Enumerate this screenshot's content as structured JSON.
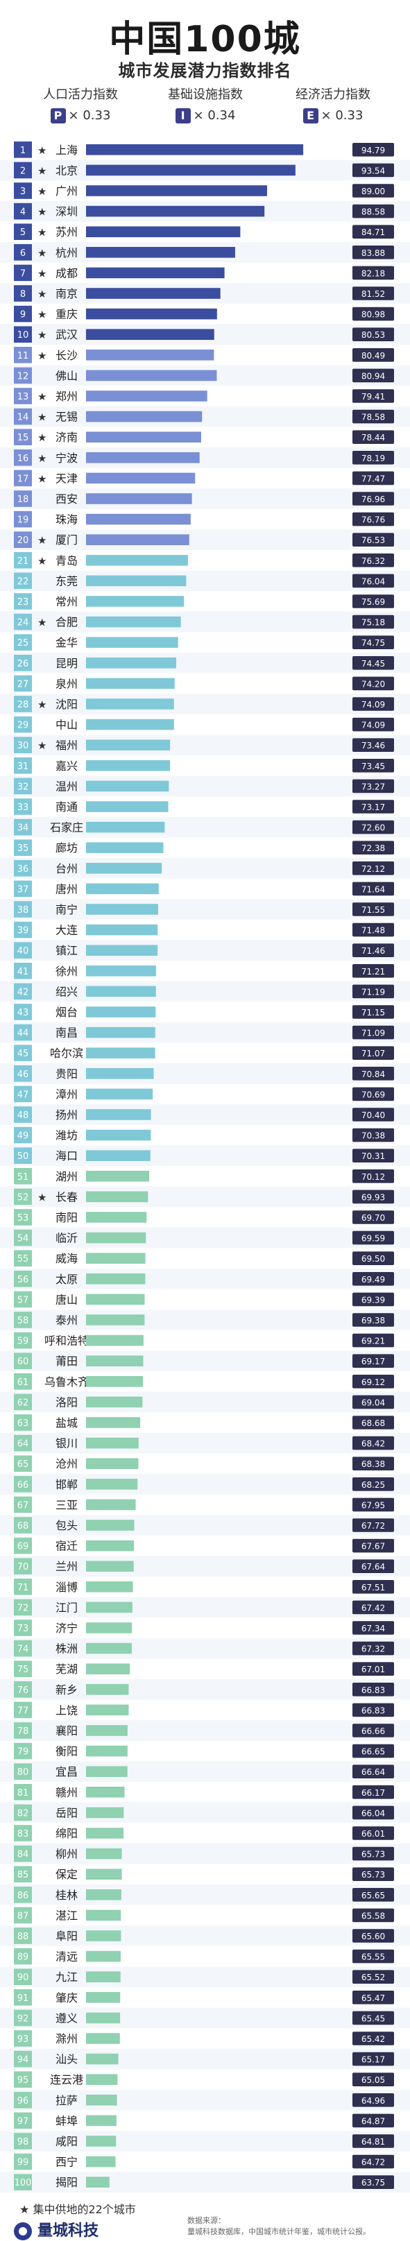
{
  "header": {
    "title": "中国100城",
    "subtitle": "城市发展潜力指数排名",
    "factors": [
      {
        "label": "人口活力指数",
        "letter": "P",
        "weight": "× 0.33"
      },
      {
        "label": "基础设施指数",
        "letter": "I",
        "weight": "× 0.34"
      },
      {
        "label": "经济活力指数",
        "letter": "E",
        "weight": "× 0.33"
      }
    ]
  },
  "colors": {
    "rank_dark": "#3b4d9e",
    "rank_mid": "#7a8fd4",
    "rank_light": "#7fc8d8",
    "rank_green": "#8fd1b0",
    "bar_dark": "#3b4d9e",
    "bar_mid": "#7a8fd4",
    "bar_light": "#7fc8d8",
    "bar_green": "#8fd1b0",
    "value_box": "#2f2f4f"
  },
  "chart_data": {
    "type": "bar",
    "orientation": "horizontal",
    "xlim": [
      60,
      96
    ],
    "categories": [
      "上海",
      "北京",
      "广州",
      "深圳",
      "苏州",
      "杭州",
      "成都",
      "南京",
      "重庆",
      "武汉",
      "长沙",
      "佛山",
      "郑州",
      "无锡",
      "济南",
      "宁波",
      "天津",
      "西安",
      "珠海",
      "厦门",
      "青岛",
      "东莞",
      "常州",
      "合肥",
      "金华",
      "昆明",
      "泉州",
      "沈阳",
      "中山",
      "福州",
      "嘉兴",
      "温州",
      "南通",
      "石家庄",
      "廊坊",
      "台州",
      "唐州",
      "南宁",
      "大连",
      "镇江",
      "徐州",
      "绍兴",
      "烟台",
      "南昌",
      "哈尔滨",
      "贵阳",
      "漳州",
      "扬州",
      "潍坊",
      "海口",
      "湖州",
      "长春",
      "南阳",
      "临沂",
      "威海",
      "太原",
      "唐山",
      "泰州",
      "呼和浩特",
      "莆田",
      "乌鲁木齐",
      "洛阳",
      "盐城",
      "银川",
      "沧州",
      "邯郸",
      "三亚",
      "包头",
      "宿迁",
      "兰州",
      "淄博",
      "江门",
      "济宁",
      "株洲",
      "芜湖",
      "新乡",
      "上饶",
      "襄阳",
      "衡阳",
      "宜昌",
      "赣州",
      "岳阳",
      "绵阳",
      "柳州",
      "保定",
      "桂林",
      "湛江",
      "阜阳",
      "清远",
      "九江",
      "肇庆",
      "遵义",
      "滁州",
      "汕头",
      "连云港",
      "拉萨",
      "蚌埠",
      "咸阳",
      "西宁",
      "揭阳"
    ],
    "values": [
      94.79,
      93.54,
      89.0,
      88.58,
      84.71,
      83.88,
      82.18,
      81.52,
      80.98,
      80.53,
      80.49,
      80.94,
      79.41,
      78.58,
      78.44,
      78.19,
      77.47,
      76.96,
      76.76,
      76.53,
      76.32,
      76.04,
      75.69,
      75.18,
      74.75,
      74.45,
      74.2,
      74.09,
      74.09,
      73.46,
      73.45,
      73.27,
      73.17,
      72.6,
      72.38,
      72.12,
      71.64,
      71.55,
      71.48,
      71.46,
      71.21,
      71.19,
      71.15,
      71.09,
      71.07,
      70.84,
      70.69,
      70.4,
      70.38,
      70.31,
      70.12,
      69.93,
      69.7,
      69.59,
      69.5,
      69.49,
      69.39,
      69.38,
      69.21,
      69.17,
      69.12,
      69.04,
      68.68,
      68.42,
      68.38,
      68.25,
      67.95,
      67.72,
      67.67,
      67.64,
      67.51,
      67.42,
      67.34,
      67.32,
      67.01,
      66.83,
      66.83,
      66.66,
      66.65,
      66.64,
      66.17,
      66.04,
      66.01,
      65.73,
      65.73,
      65.65,
      65.58,
      65.6,
      65.55,
      65.52,
      65.47,
      65.45,
      65.42,
      65.17,
      65.05,
      64.96,
      64.87,
      64.81,
      64.72,
      63.75
    ],
    "starred": [
      "上海",
      "北京",
      "广州",
      "深圳",
      "苏州",
      "杭州",
      "成都",
      "南京",
      "重庆",
      "武汉",
      "长沙",
      "郑州",
      "无锡",
      "济南",
      "宁波",
      "天津",
      "厦门",
      "青岛",
      "合肥",
      "沈阳",
      "福州",
      "长春"
    ],
    "legend": "集中供地的22个城市"
  },
  "footer": {
    "legend_star": "★",
    "logo": "量城科技",
    "source_lines": [
      "数据来源：",
      "量城科技数据库，中国城市统计年鉴，城市统计公报。"
    ]
  }
}
